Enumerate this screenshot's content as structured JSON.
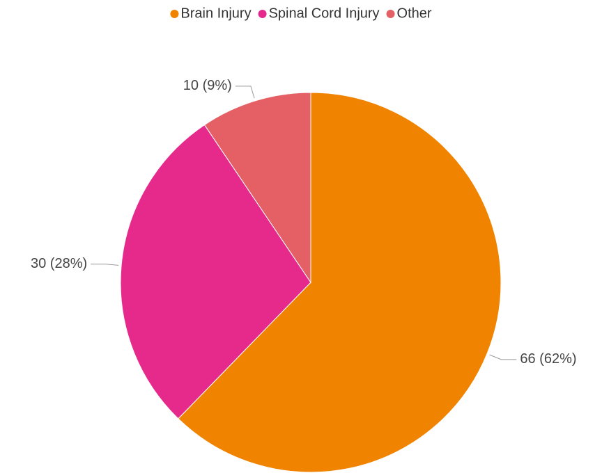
{
  "chart_data": {
    "type": "pie",
    "categories": [
      "Brain Injury",
      "Spinal Cord Injury",
      "Other"
    ],
    "values": [
      66,
      30,
      10
    ],
    "value_labels": [
      "66 (62%)",
      "30 (28%)",
      "10 (9%)"
    ],
    "colors": [
      "#f08300",
      "#e52a8c",
      "#e46065"
    ],
    "legend": "top"
  }
}
